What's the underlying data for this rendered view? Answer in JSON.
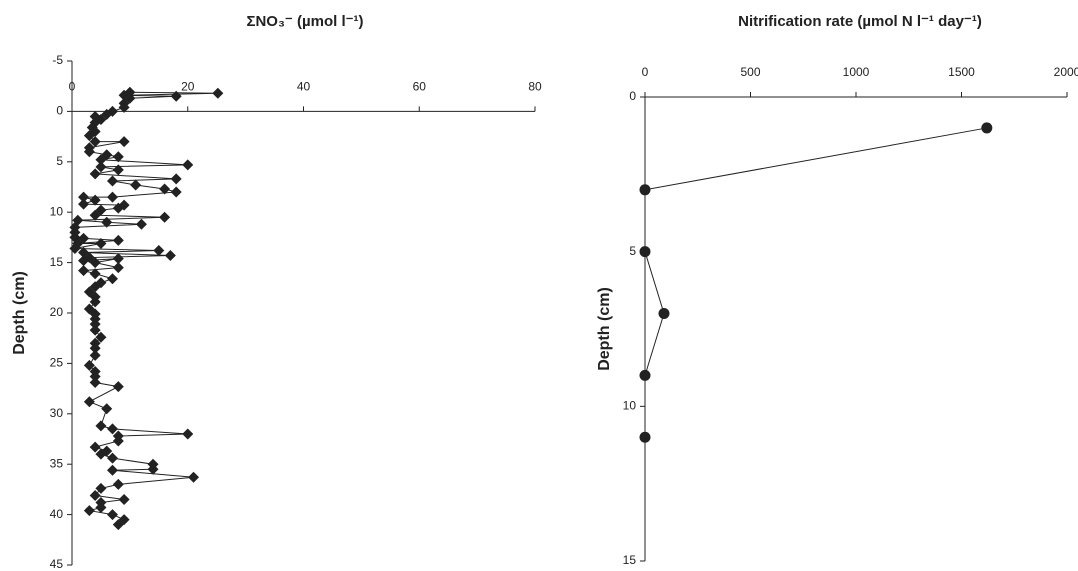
{
  "chart_data": [
    {
      "type": "line",
      "marker": "diamond",
      "color": "#222",
      "title": "ΣNO₃⁻ (µmol l⁻¹)",
      "y_label": "Depth (cm)",
      "xlim": [
        0,
        80
      ],
      "xticks": [
        0,
        20,
        40,
        60,
        80
      ],
      "ylim": [
        -5,
        45
      ],
      "yticks": [
        -5,
        0,
        5,
        10,
        15,
        20,
        25,
        30,
        35,
        40,
        45
      ],
      "x": [
        10,
        25.2,
        9,
        18,
        10,
        9,
        9,
        7,
        6,
        4,
        5,
        4,
        3.5,
        4,
        3,
        4,
        9,
        3,
        3,
        6,
        8,
        5,
        20,
        5,
        8,
        4,
        18,
        7,
        11,
        16,
        18,
        7,
        2,
        4,
        2,
        9,
        8,
        5,
        4,
        16,
        1,
        6,
        12,
        0.5,
        0.5,
        0.5,
        2,
        8,
        1,
        5,
        0.5,
        15,
        2,
        17,
        3,
        2,
        8,
        4,
        8,
        2,
        4,
        7,
        5,
        4,
        3,
        4,
        4,
        3,
        4,
        4,
        4,
        4,
        5,
        4,
        4,
        4,
        3,
        4,
        4,
        4,
        8,
        3,
        6,
        5,
        7,
        20,
        8,
        8,
        4,
        6,
        5,
        7,
        14,
        14,
        7,
        21,
        8,
        5,
        4,
        9,
        5,
        5,
        3,
        7,
        9,
        8
      ],
      "y": [
        -1.9,
        -1.8,
        -1.6,
        -1.5,
        -1.3,
        -0.8,
        -0.4,
        0,
        0.3,
        0.5,
        0.8,
        1.1,
        1.6,
        2,
        2.4,
        3,
        3,
        3.6,
        4,
        4.3,
        4.5,
        4.8,
        5.3,
        5.5,
        5.8,
        6.2,
        6.7,
        6.9,
        7.3,
        7.7,
        8,
        8.5,
        8.5,
        8.8,
        9.2,
        9.3,
        9.6,
        9.8,
        10.3,
        10.5,
        10.8,
        11,
        11.2,
        11.5,
        12,
        12.5,
        12.6,
        12.8,
        13.1,
        13.1,
        13.6,
        13.8,
        14,
        14.3,
        14.5,
        14.8,
        14.6,
        15,
        15.5,
        15.8,
        16.1,
        16.6,
        17,
        17.4,
        17.9,
        18.4,
        18.9,
        19.6,
        20.1,
        20.6,
        21.1,
        21.7,
        22.4,
        23,
        23.5,
        24.2,
        25.2,
        25.8,
        26.3,
        26.9,
        27.3,
        28.8,
        29.5,
        31.2,
        31.5,
        32,
        32.2,
        32.7,
        33.3,
        33.7,
        34,
        34.4,
        35,
        35.5,
        35.6,
        36.3,
        37,
        37.4,
        38.1,
        38.5,
        38.8,
        39.3,
        39.6,
        40,
        40.5,
        41
      ]
    },
    {
      "type": "line",
      "marker": "circle",
      "color": "#222",
      "title": "Nitrification rate (µmol N l⁻¹ day⁻¹)",
      "y_label": "Depth (cm)",
      "xlim": [
        0,
        2000
      ],
      "xticks": [
        0,
        500,
        1000,
        1500,
        2000
      ],
      "ylim": [
        0,
        15
      ],
      "yticks": [
        0,
        5,
        10,
        15
      ],
      "x": [
        1620,
        0,
        0,
        90,
        0,
        0
      ],
      "y": [
        1,
        3,
        5,
        7,
        9,
        11
      ]
    }
  ]
}
